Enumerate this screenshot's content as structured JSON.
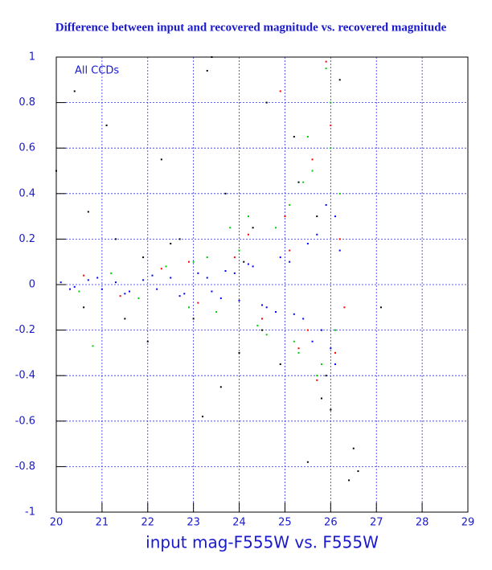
{
  "chart_data": {
    "type": "scatter",
    "title": "Difference between input and recovered magnitude vs. recovered magnitude",
    "annotation": "All CCDs",
    "x_label": "input mag-F555W vs. F555W",
    "xlim": [
      20,
      29
    ],
    "xticks": [
      20,
      21,
      22,
      23,
      24,
      25,
      26,
      27,
      28,
      29
    ],
    "ylim": [
      -1,
      1
    ],
    "yticks": [
      -1,
      -0.8,
      -0.6,
      -0.4,
      -0.2,
      0,
      0.2,
      0.4,
      0.6,
      0.8,
      1
    ],
    "grid": true,
    "series": [
      {
        "color": "#000000",
        "x": [
          20.4,
          20.7,
          21.1,
          21.5,
          21.9,
          22.3,
          22.7,
          23.0,
          23.4,
          23.7,
          24.0,
          24.3,
          24.6,
          24.9,
          25.2,
          25.5,
          25.8,
          26.0,
          26.2,
          26.5,
          26.6,
          27.1,
          23.3,
          23.2,
          22.5,
          20.0,
          20.6,
          22.0,
          24.5,
          25.9,
          25.3,
          24.1,
          23.6,
          25.7,
          26.4,
          21.3
        ],
        "values": [
          0.85,
          0.32,
          0.7,
          -0.15,
          0.12,
          0.55,
          0.2,
          -0.15,
          1.0,
          0.4,
          -0.3,
          0.25,
          0.8,
          -0.35,
          0.65,
          -0.78,
          -0.5,
          -0.55,
          0.9,
          -0.72,
          -0.82,
          -0.1,
          0.94,
          -0.58,
          0.18,
          0.5,
          -0.1,
          -0.25,
          -0.2,
          -0.4,
          0.45,
          0.1,
          -0.45,
          0.3,
          -0.86,
          0.2
        ]
      },
      {
        "color": "#ff0000",
        "x": [
          20.6,
          21.4,
          22.3,
          23.1,
          23.9,
          24.5,
          25.0,
          25.3,
          25.6,
          25.9,
          26.1,
          26.2,
          25.7,
          25.1,
          24.2,
          26.0,
          25.5,
          22.9,
          24.9,
          26.3
        ],
        "values": [
          0.04,
          -0.05,
          0.07,
          -0.08,
          0.12,
          -0.15,
          0.3,
          -0.28,
          0.55,
          0.98,
          -0.3,
          0.2,
          -0.42,
          0.15,
          0.22,
          0.7,
          -0.2,
          0.1,
          0.85,
          -0.1
        ]
      },
      {
        "color": "#00cc00",
        "x": [
          20.5,
          21.2,
          21.8,
          22.4,
          23.0,
          23.5,
          24.0,
          24.4,
          24.8,
          25.1,
          25.3,
          25.6,
          25.8,
          26.0,
          26.2,
          25.9,
          25.5,
          24.6,
          23.8,
          22.9,
          25.7,
          26.1,
          24.2,
          25.2,
          20.8,
          26.0,
          25.4,
          23.3
        ],
        "values": [
          -0.03,
          0.05,
          -0.06,
          0.08,
          0.1,
          -0.12,
          0.15,
          -0.18,
          0.25,
          0.35,
          -0.3,
          0.5,
          -0.35,
          0.8,
          0.4,
          0.95,
          0.65,
          -0.22,
          0.25,
          -0.1,
          -0.4,
          -0.2,
          0.3,
          -0.25,
          -0.27,
          0.6,
          0.45,
          0.12
        ]
      },
      {
        "color": "#0000ff",
        "x": [
          20.1,
          20.4,
          20.7,
          21.0,
          21.3,
          21.6,
          21.9,
          22.2,
          22.5,
          22.8,
          23.1,
          23.4,
          23.7,
          24.0,
          24.3,
          24.6,
          24.9,
          25.2,
          25.5,
          25.8,
          26.1,
          20.3,
          20.9,
          21.5,
          22.1,
          22.7,
          23.3,
          23.9,
          24.5,
          25.1,
          25.4,
          25.7,
          26.0,
          26.2,
          25.9,
          25.6,
          24.8,
          24.2,
          23.6,
          26.1
        ],
        "values": [
          0.01,
          -0.01,
          0.02,
          -0.02,
          0.01,
          -0.03,
          0.02,
          -0.02,
          0.03,
          -0.04,
          0.05,
          -0.03,
          0.06,
          -0.07,
          0.08,
          -0.1,
          0.12,
          -0.13,
          0.18,
          -0.2,
          0.3,
          -0.02,
          0.03,
          -0.04,
          0.04,
          -0.05,
          0.03,
          0.05,
          -0.09,
          0.1,
          -0.15,
          0.22,
          -0.28,
          0.15,
          0.35,
          -0.25,
          -0.12,
          0.09,
          -0.06,
          -0.35
        ]
      }
    ]
  }
}
